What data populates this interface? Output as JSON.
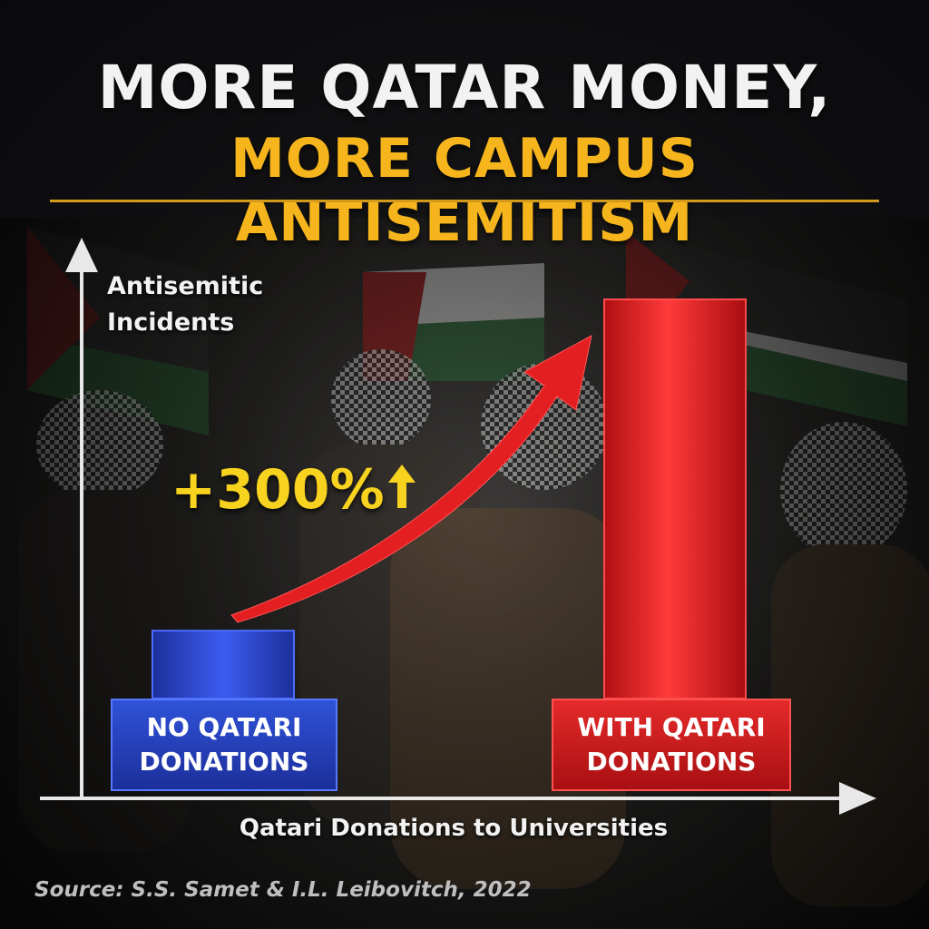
{
  "title": {
    "line1": "MORE QATAR MONEY,",
    "line2": "MORE CAMPUS ANTISEMITISM",
    "accent_color": "#f6b51c"
  },
  "chart_data": {
    "type": "bar",
    "categories": [
      "NO QATARI\nDONATIONS",
      "WITH QATARI\nDONATIONS"
    ],
    "values": [
      1,
      4
    ],
    "ylabel": "Antisemitic\nIncidents",
    "xlabel": "Qatari Donations to Universities",
    "ylim": [
      0,
      4.2
    ],
    "colors": [
      "#2a44c9",
      "#e41f22"
    ],
    "annotation": "+300%",
    "annotation_icon": "up-arrow-icon",
    "grid": false,
    "legend": "none"
  },
  "source": "Source: S.S. Samet & I.L. Leibovitch, 2022"
}
